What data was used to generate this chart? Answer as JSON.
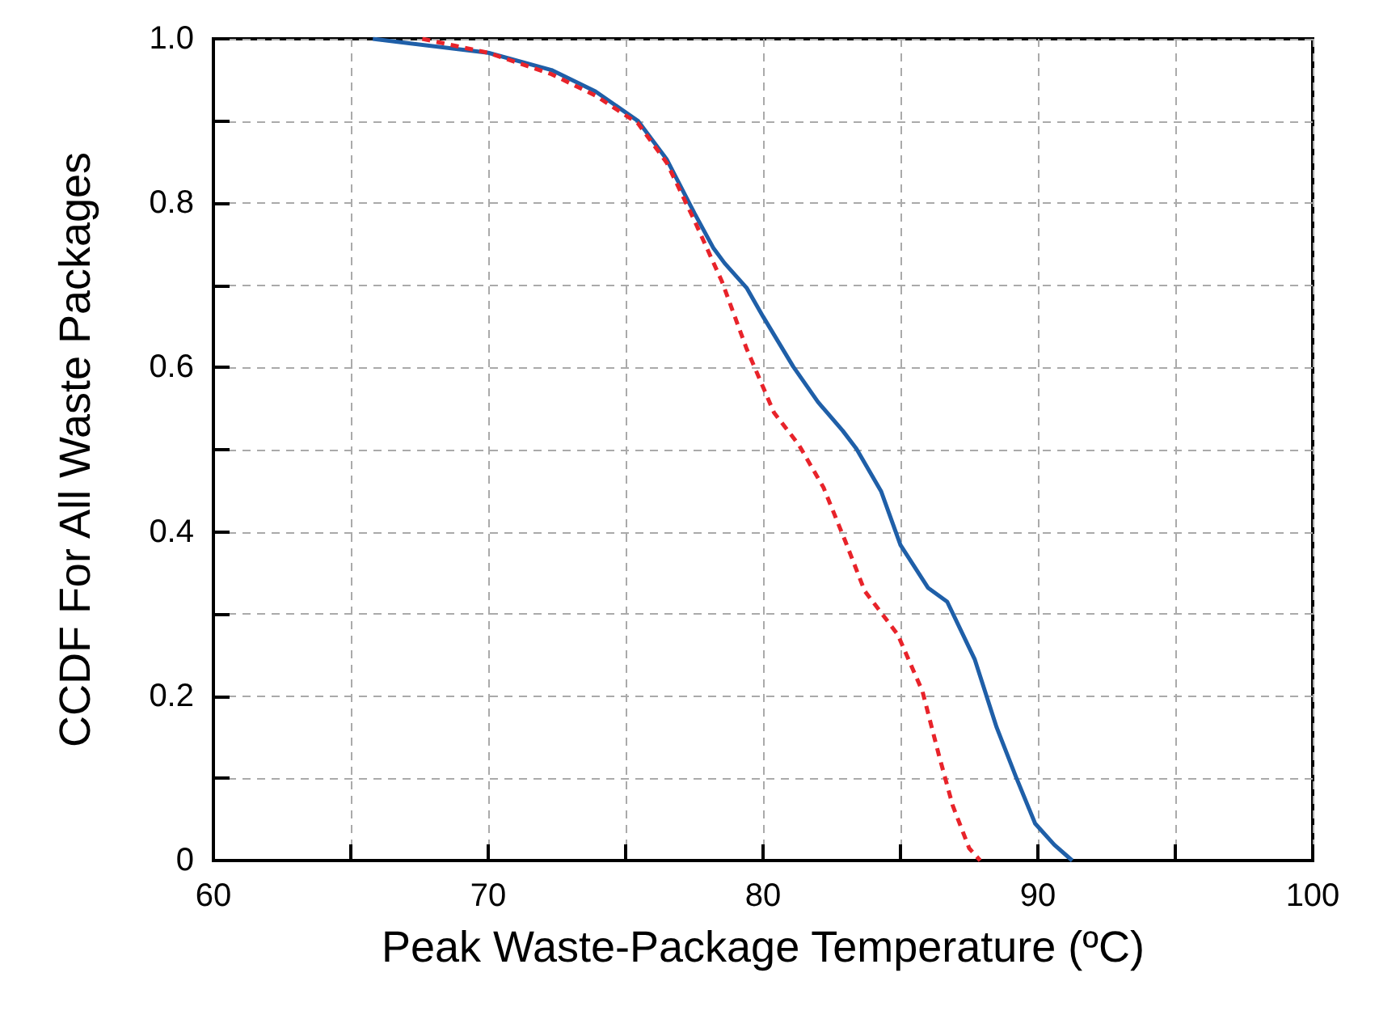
{
  "chart_data": {
    "type": "line",
    "xlabel": "Peak Waste-Package Temperature (ºC)",
    "ylabel": "CCDF For All Waste Packages",
    "xlim": [
      60,
      100
    ],
    "xticks": [
      60,
      {
        "value": 65,
        "label": null
      },
      70,
      {
        "value": 75,
        "label": null
      },
      80,
      {
        "value": 85,
        "label": null
      },
      90,
      {
        "value": 95,
        "label": null
      },
      100
    ],
    "ylim": [
      0,
      1
    ],
    "yticks": [
      0,
      {
        "value": 0.1,
        "label": null
      },
      0.2,
      {
        "value": 0.3,
        "label": null
      },
      0.4,
      {
        "value": 0.5,
        "label": null
      },
      0.6,
      {
        "value": 0.7,
        "label": null
      },
      0.8,
      {
        "value": 0.9,
        "label": null
      },
      {
        "value": 1,
        "label": "1.0"
      }
    ],
    "grid": true,
    "series": [
      {
        "color": "#1f5fa8",
        "line_style": "solid",
        "x": [
          65.8,
          70,
          72.3,
          73.9,
          75.45,
          76.5,
          77.5,
          78.2,
          78.6,
          79.4,
          80.0,
          81.1,
          82.0,
          82.9,
          83.4,
          84.3,
          85.0,
          86.0,
          86.7,
          87.7,
          88.5,
          89.2,
          89.9,
          90.6,
          91.25
        ],
        "values": [
          1.0,
          0.983,
          0.962,
          0.936,
          0.9,
          0.853,
          0.788,
          0.745,
          0.727,
          0.697,
          0.662,
          0.601,
          0.558,
          0.523,
          0.501,
          0.449,
          0.384,
          0.332,
          0.315,
          0.245,
          0.162,
          0.102,
          0.045,
          0.019,
          0
        ]
      },
      {
        "color": "#e8232a",
        "line_style": "dashed",
        "x": [
          67.6,
          70,
          72.3,
          73.9,
          75.45,
          76.5,
          77.5,
          78.5,
          79.4,
          80.4,
          81.3,
          82.2,
          83.0,
          83.7,
          84.9,
          85.8,
          86.4,
          86.9,
          87.5,
          87.9
        ],
        "values": [
          1.0,
          0.983,
          0.957,
          0.931,
          0.897,
          0.849,
          0.779,
          0.705,
          0.623,
          0.545,
          0.506,
          0.454,
          0.388,
          0.328,
          0.275,
          0.206,
          0.128,
          0.067,
          0.015,
          0
        ]
      }
    ]
  }
}
